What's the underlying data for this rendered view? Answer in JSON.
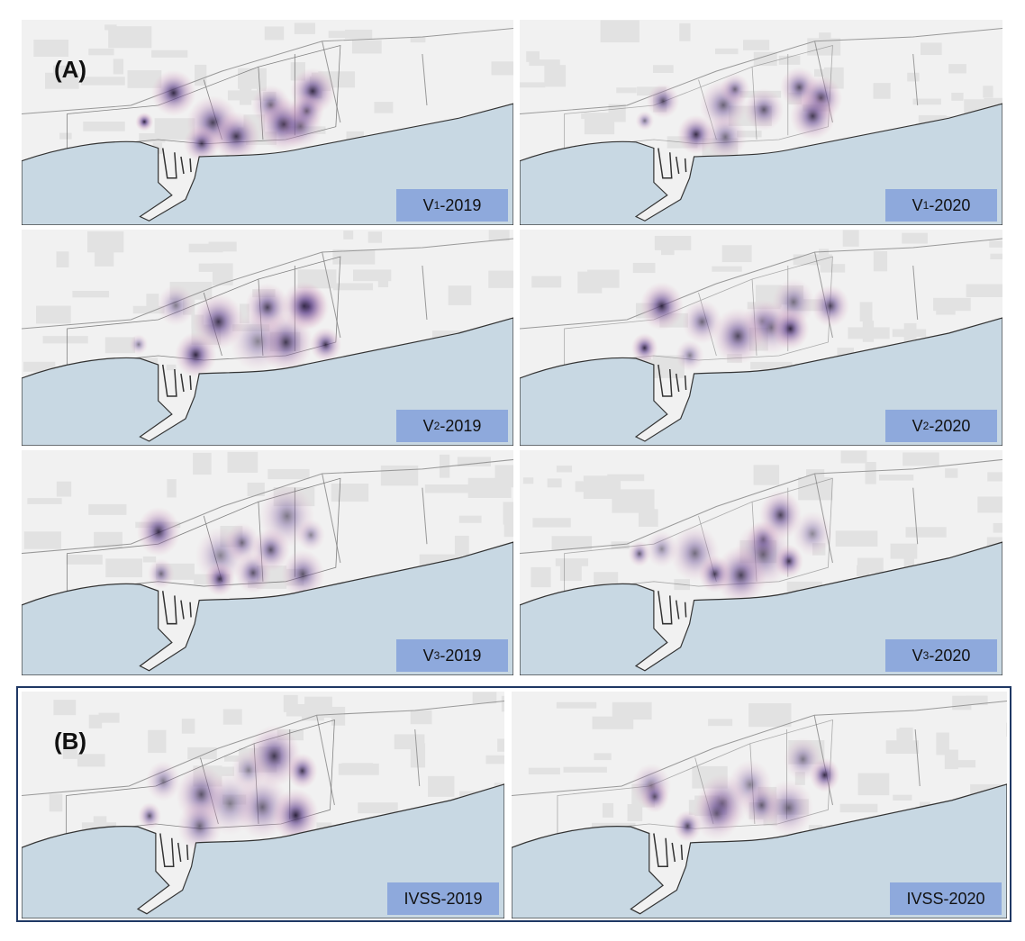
{
  "panel_a": {
    "tag": "(A)",
    "panels": [
      {
        "prefix": "V",
        "subscript": "1",
        "suffix": "-2019"
      },
      {
        "prefix": "V",
        "subscript": "1",
        "suffix": "-2020"
      },
      {
        "prefix": "V",
        "subscript": "2",
        "suffix": "-2019"
      },
      {
        "prefix": "V",
        "subscript": "2",
        "suffix": "-2020"
      },
      {
        "prefix": "V",
        "subscript": "3",
        "suffix": "-2019"
      },
      {
        "prefix": "V",
        "subscript": "3",
        "suffix": "-2020"
      }
    ]
  },
  "panel_b": {
    "tag": "(B)",
    "panels": [
      {
        "prefix": "IVSS",
        "suffix": "-2019"
      },
      {
        "prefix": "IVSS",
        "suffix": "-2020"
      }
    ]
  }
}
